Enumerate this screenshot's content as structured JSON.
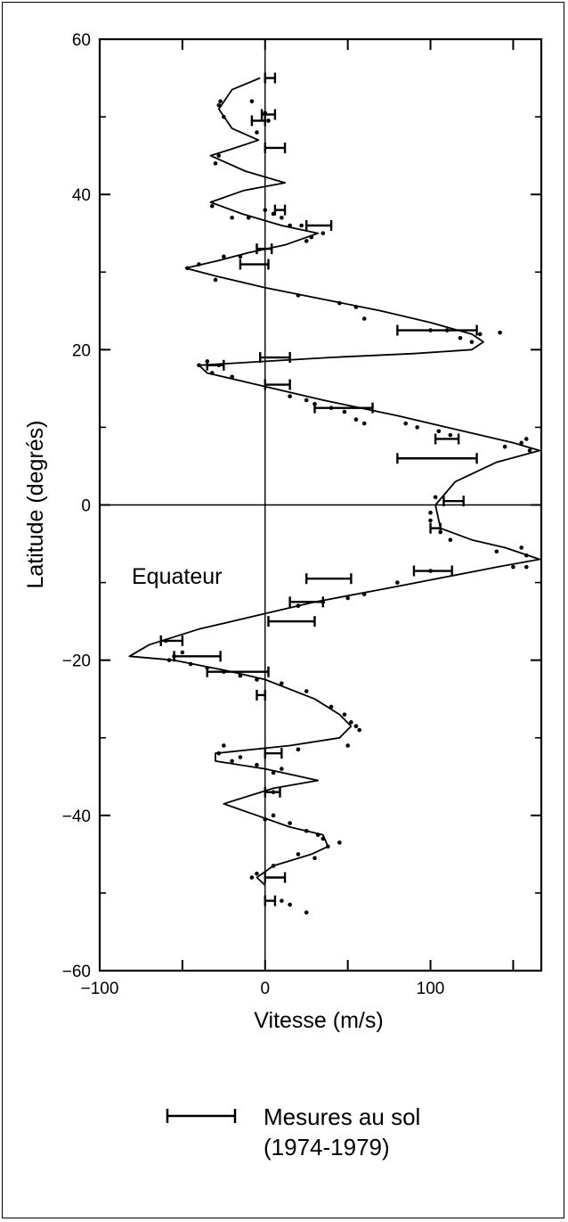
{
  "chart_data": {
    "type": "scatter",
    "xlabel": "Vitesse (m/s)",
    "ylabel": "Latitude (degrés)",
    "xlim": [
      -100,
      167
    ],
    "ylim": [
      -60,
      60
    ],
    "x_ticks": [
      -100,
      0,
      100
    ],
    "x_tick_labels": [
      "−100",
      "0",
      "100"
    ],
    "y_ticks": [
      60,
      40,
      20,
      0,
      -20,
      -40,
      -60
    ],
    "y_tick_labels": [
      "60",
      "40",
      "20",
      "0",
      "−20",
      "−40",
      "−60"
    ],
    "grid": false,
    "annotation": "Equateur",
    "legend": {
      "placement": "bottom",
      "line1": "Mesures au sol",
      "line2": "(1974-1979)"
    },
    "series": [
      {
        "kind": "curve",
        "points": [
          [
            -3,
            55
          ],
          [
            -20,
            53.5
          ],
          [
            -28,
            51
          ],
          [
            -20,
            48.5
          ],
          [
            -4,
            47
          ],
          [
            -18,
            46
          ],
          [
            -33,
            45
          ],
          [
            -12,
            43
          ],
          [
            12,
            41.5
          ],
          [
            -13,
            40.5
          ],
          [
            -33,
            39
          ],
          [
            -14,
            37.5
          ],
          [
            10,
            36
          ],
          [
            32,
            35
          ],
          [
            12,
            33.5
          ],
          [
            -10,
            32.5
          ],
          [
            -28,
            31.5
          ],
          [
            -48,
            30.5
          ],
          [
            -30,
            29.5
          ],
          [
            0,
            28
          ],
          [
            35,
            26.5
          ],
          [
            70,
            25
          ],
          [
            100,
            23.5
          ],
          [
            125,
            22
          ],
          [
            132,
            21
          ],
          [
            125,
            20
          ],
          [
            90,
            19.5
          ],
          [
            40,
            19
          ],
          [
            0,
            18.5
          ],
          [
            -40,
            18
          ],
          [
            -35,
            17
          ],
          [
            -5,
            15.5
          ],
          [
            35,
            13.5
          ],
          [
            80,
            11.5
          ],
          [
            120,
            9.5
          ],
          [
            150,
            8
          ],
          [
            166,
            7
          ],
          [
            140,
            5.5
          ],
          [
            115,
            3
          ],
          [
            103,
            0
          ],
          [
            106,
            -3
          ],
          [
            125,
            -4.5
          ],
          [
            145,
            -5.5
          ],
          [
            166,
            -7
          ],
          [
            140,
            -8
          ],
          [
            80,
            -10.5
          ],
          [
            30,
            -12.5
          ],
          [
            0,
            -14
          ],
          [
            -40,
            -16
          ],
          [
            -70,
            -18
          ],
          [
            -82,
            -19.5
          ],
          [
            -55,
            -20
          ],
          [
            -20,
            -21.5
          ],
          [
            0,
            -22.5
          ],
          [
            30,
            -25
          ],
          [
            45,
            -27
          ],
          [
            52,
            -28.5
          ],
          [
            45,
            -30
          ],
          [
            15,
            -31
          ],
          [
            -30,
            -32
          ],
          [
            -30,
            -33
          ],
          [
            0,
            -34
          ],
          [
            32,
            -35.5
          ],
          [
            5,
            -36.5
          ],
          [
            -25,
            -38.5
          ],
          [
            -5,
            -40
          ],
          [
            15,
            -41.5
          ],
          [
            35,
            -42.5
          ],
          [
            38,
            -44
          ],
          [
            28,
            -45
          ],
          [
            5,
            -46.5
          ],
          [
            -5,
            -48
          ],
          [
            0,
            -49
          ]
        ]
      },
      {
        "kind": "points",
        "points": [
          [
            -28,
            51.5
          ],
          [
            -25,
            50
          ],
          [
            -27,
            52
          ],
          [
            0,
            50.5
          ],
          [
            -8,
            52
          ],
          [
            2,
            49.5
          ],
          [
            -5,
            48
          ],
          [
            -28,
            45
          ],
          [
            -30,
            44
          ],
          [
            -32,
            38.5
          ],
          [
            -20,
            37
          ],
          [
            -10,
            37
          ],
          [
            5,
            37.5
          ],
          [
            10,
            37
          ],
          [
            0,
            38
          ],
          [
            15,
            36
          ],
          [
            28,
            34.5
          ],
          [
            35,
            35
          ],
          [
            25,
            34
          ],
          [
            22,
            36
          ],
          [
            -15,
            32
          ],
          [
            -25,
            32
          ],
          [
            -47,
            30.5
          ],
          [
            -40,
            31
          ],
          [
            -30,
            29
          ],
          [
            20,
            27
          ],
          [
            45,
            26
          ],
          [
            55,
            25.5
          ],
          [
            60,
            24
          ],
          [
            100,
            22.5
          ],
          [
            118,
            21.5
          ],
          [
            125,
            21
          ],
          [
            130,
            22
          ],
          [
            142,
            22.2
          ],
          [
            110,
            22.5
          ],
          [
            -40,
            18
          ],
          [
            -35,
            18.5
          ],
          [
            -28,
            18
          ],
          [
            -32,
            17
          ],
          [
            -20,
            16.5
          ],
          [
            15,
            14
          ],
          [
            25,
            13.5
          ],
          [
            30,
            13
          ],
          [
            40,
            12.5
          ],
          [
            48,
            12
          ],
          [
            55,
            11
          ],
          [
            60,
            10.5
          ],
          [
            85,
            10.5
          ],
          [
            92,
            10
          ],
          [
            105,
            9.5
          ],
          [
            112,
            9
          ],
          [
            145,
            7.5
          ],
          [
            155,
            8
          ],
          [
            160,
            7
          ],
          [
            158,
            8.5
          ],
          [
            103,
            1
          ],
          [
            100,
            -1
          ],
          [
            100,
            -2
          ],
          [
            106,
            -3.5
          ],
          [
            112,
            -4.5
          ],
          [
            140,
            -6
          ],
          [
            158,
            -6.5
          ],
          [
            155,
            -5.5
          ],
          [
            158,
            -8
          ],
          [
            150,
            -8
          ],
          [
            100,
            -8.5
          ],
          [
            80,
            -10
          ],
          [
            60,
            -11.5
          ],
          [
            50,
            -12
          ],
          [
            35,
            -12.5
          ],
          [
            20,
            -13
          ],
          [
            -60,
            -17.5
          ],
          [
            -58,
            -20
          ],
          [
            -55,
            -19.5
          ],
          [
            -50,
            -19
          ],
          [
            -45,
            -20.5
          ],
          [
            -35,
            -21
          ],
          [
            -25,
            -21.5
          ],
          [
            -15,
            -22
          ],
          [
            -5,
            -22.5
          ],
          [
            10,
            -23
          ],
          [
            25,
            -24
          ],
          [
            40,
            -26
          ],
          [
            48,
            -27
          ],
          [
            52,
            -28
          ],
          [
            55,
            -28.5
          ],
          [
            57,
            -29
          ],
          [
            50,
            -31
          ],
          [
            20,
            -31.5
          ],
          [
            -28,
            -32
          ],
          [
            -25,
            -31
          ],
          [
            -20,
            -33
          ],
          [
            -15,
            -32.5
          ],
          [
            -5,
            -33.5
          ],
          [
            5,
            -34.5
          ],
          [
            10,
            -34
          ],
          [
            5,
            -37
          ],
          [
            0,
            -40.5
          ],
          [
            5,
            -40
          ],
          [
            15,
            -41
          ],
          [
            25,
            -42
          ],
          [
            32,
            -42.5
          ],
          [
            35,
            -43
          ],
          [
            38,
            -44
          ],
          [
            45,
            -43.5
          ],
          [
            30,
            -45.5
          ],
          [
            20,
            -45
          ],
          [
            5,
            -46.5
          ],
          [
            -5,
            -47.5
          ],
          [
            -8,
            -48
          ],
          [
            15,
            -51.5
          ],
          [
            25,
            -52.5
          ],
          [
            10,
            -51
          ]
        ]
      }
    ],
    "error_bars": [
      {
        "y": 55,
        "x_low": 0,
        "x_high": 6
      },
      {
        "y": 50.3,
        "x_low": -2,
        "x_high": 6
      },
      {
        "y": 49.5,
        "x_low": -8,
        "x_high": 0
      },
      {
        "y": 46,
        "x_low": 0,
        "x_high": 12
      },
      {
        "y": 38,
        "x_low": 6,
        "x_high": 12
      },
      {
        "y": 36,
        "x_low": 25,
        "x_high": 40
      },
      {
        "y": 33,
        "x_low": -5,
        "x_high": 4
      },
      {
        "y": 31,
        "x_low": -15,
        "x_high": 2
      },
      {
        "y": 22.5,
        "x_low": 80,
        "x_high": 128
      },
      {
        "y": 19,
        "x_low": -3,
        "x_high": 15
      },
      {
        "y": 18,
        "x_low": -35,
        "x_high": -25
      },
      {
        "y": 15.5,
        "x_low": 0,
        "x_high": 15
      },
      {
        "y": 12.5,
        "x_low": 30,
        "x_high": 65
      },
      {
        "y": 8.5,
        "x_low": 103,
        "x_high": 117
      },
      {
        "y": 6,
        "x_low": 80,
        "x_high": 128
      },
      {
        "y": 0.5,
        "x_low": 108,
        "x_high": 120
      },
      {
        "y": -3,
        "x_low": 100,
        "x_high": 106
      },
      {
        "y": -8.5,
        "x_low": 90,
        "x_high": 113
      },
      {
        "y": -9.5,
        "x_low": 25,
        "x_high": 52
      },
      {
        "y": -12.5,
        "x_low": 15,
        "x_high": 35
      },
      {
        "y": -15,
        "x_low": 2,
        "x_high": 30
      },
      {
        "y": -17.5,
        "x_low": -63,
        "x_high": -50
      },
      {
        "y": -19.5,
        "x_low": -55,
        "x_high": -27
      },
      {
        "y": -21.5,
        "x_low": -35,
        "x_high": 2
      },
      {
        "y": -24.5,
        "x_low": -5,
        "x_high": 0
      },
      {
        "y": -32,
        "x_low": 0,
        "x_high": 10
      },
      {
        "y": -37,
        "x_low": 0,
        "x_high": 9
      },
      {
        "y": -48,
        "x_low": 0,
        "x_high": 12
      },
      {
        "y": -51,
        "x_low": 0,
        "x_high": 6
      }
    ]
  }
}
